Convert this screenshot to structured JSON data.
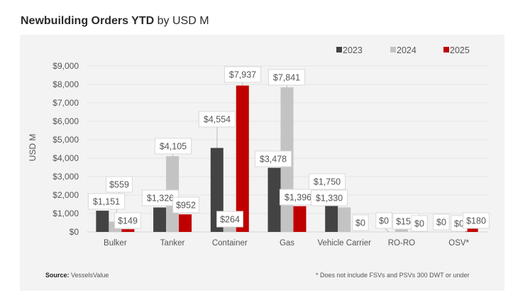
{
  "title": {
    "bold": "Newbuilding Orders YTD",
    "regular": "by USD M"
  },
  "footer": {
    "source_label": "Source:",
    "source_value": "VesselsValue",
    "note": "* Does not include FSVs and PSVs 300 DWT or under"
  },
  "chart_data": {
    "type": "bar",
    "title": "Newbuilding Orders YTD by USD M",
    "xlabel": "",
    "ylabel": "USD M",
    "ylim": [
      0,
      9000
    ],
    "ytick_step": 1000,
    "ytick_labels": [
      "$0",
      "$1,000",
      "$2,000",
      "$3,000",
      "$4,000",
      "$5,000",
      "$6,000",
      "$7,000",
      "$8,000",
      "$9,000"
    ],
    "grid": true,
    "legend_position": "top-right",
    "categories": [
      "Bulker",
      "Tanker",
      "Container",
      "Gas",
      "Vehicle Carrier",
      "RO-RO",
      "OSV*"
    ],
    "series": [
      {
        "name": "2023",
        "color": "#434343",
        "values": [
          1151,
          1326,
          4554,
          3478,
          1750,
          0,
          0
        ],
        "labels": [
          "$1,151",
          "$1,326",
          "$4,554",
          "$3,478",
          "$1,750",
          "$0",
          "$0"
        ]
      },
      {
        "name": "2024",
        "color": "#c3c3c3",
        "values": [
          559,
          4105,
          264,
          7841,
          1330,
          156,
          0
        ],
        "labels": [
          "$559",
          "$4,105",
          "$264",
          "$7,841",
          "$1,330",
          "$156",
          "$0"
        ]
      },
      {
        "name": "2025",
        "color": "#c00000",
        "values": [
          149,
          952,
          7937,
          1396,
          0,
          0,
          180
        ],
        "labels": [
          "$149",
          "$952",
          "$7,937",
          "$1,396",
          "$0",
          "$0",
          "$180"
        ]
      }
    ]
  }
}
